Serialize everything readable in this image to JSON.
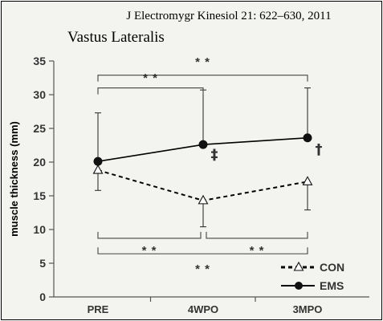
{
  "citation": "J Electromygr Kinesiol  21: 622–630, 2011",
  "chart_data": {
    "type": "line",
    "title": "Vastus Lateralis",
    "xlabel": "",
    "ylabel": "muscle thickness (mm)",
    "categories": [
      "PRE",
      "4WPO",
      "3MPO"
    ],
    "ylim": [
      0,
      35
    ],
    "yticks": [
      0,
      5,
      10,
      15,
      20,
      25,
      30,
      35
    ],
    "grid": false,
    "legend_position": "bottom-right",
    "series": [
      {
        "name": "CON",
        "style": "dashed",
        "marker": "open-triangle",
        "color": "#000000",
        "values": [
          18.8,
          14.3,
          17.1
        ],
        "error_upper": [
          18.8,
          14.3,
          17.1
        ],
        "error_lower": [
          15.8,
          10.4,
          12.9
        ]
      },
      {
        "name": "EMS",
        "style": "solid",
        "marker": "filled-circle",
        "color": "#000000",
        "values": [
          20.1,
          22.6,
          23.6
        ],
        "error_upper": [
          27.3,
          30.7,
          31.0
        ],
        "error_lower": [
          20.1,
          22.6,
          23.6
        ]
      }
    ],
    "point_annotations": [
      {
        "category": "4WPO",
        "y": 20.4,
        "text": "‡"
      },
      {
        "category": "3MPO",
        "y": 21.2,
        "text": "†"
      }
    ],
    "significance_brackets": [
      {
        "from": "PRE",
        "to": "3MPO",
        "y": 32.9,
        "direction": "down",
        "text": "* *",
        "text_y": 35.0,
        "group": "EMS"
      },
      {
        "from": "PRE",
        "to": "4WPO",
        "y": 31.0,
        "direction": "down",
        "text": "* *",
        "text_y": 32.6,
        "group": "EMS"
      },
      {
        "from": "PRE",
        "to": "4WPO",
        "y": 8.7,
        "direction": "up",
        "text": "* *",
        "text_y": 7.0,
        "group": "CON"
      },
      {
        "from": "4WPO",
        "to": "3MPO",
        "y": 8.7,
        "direction": "up",
        "text": "* *",
        "text_y": 7.0,
        "group": "CON"
      },
      {
        "from": "PRE",
        "to": "3MPO",
        "y": 6.4,
        "direction": "up",
        "text": "* *",
        "text_y": 4.3,
        "group": "CON"
      }
    ]
  }
}
